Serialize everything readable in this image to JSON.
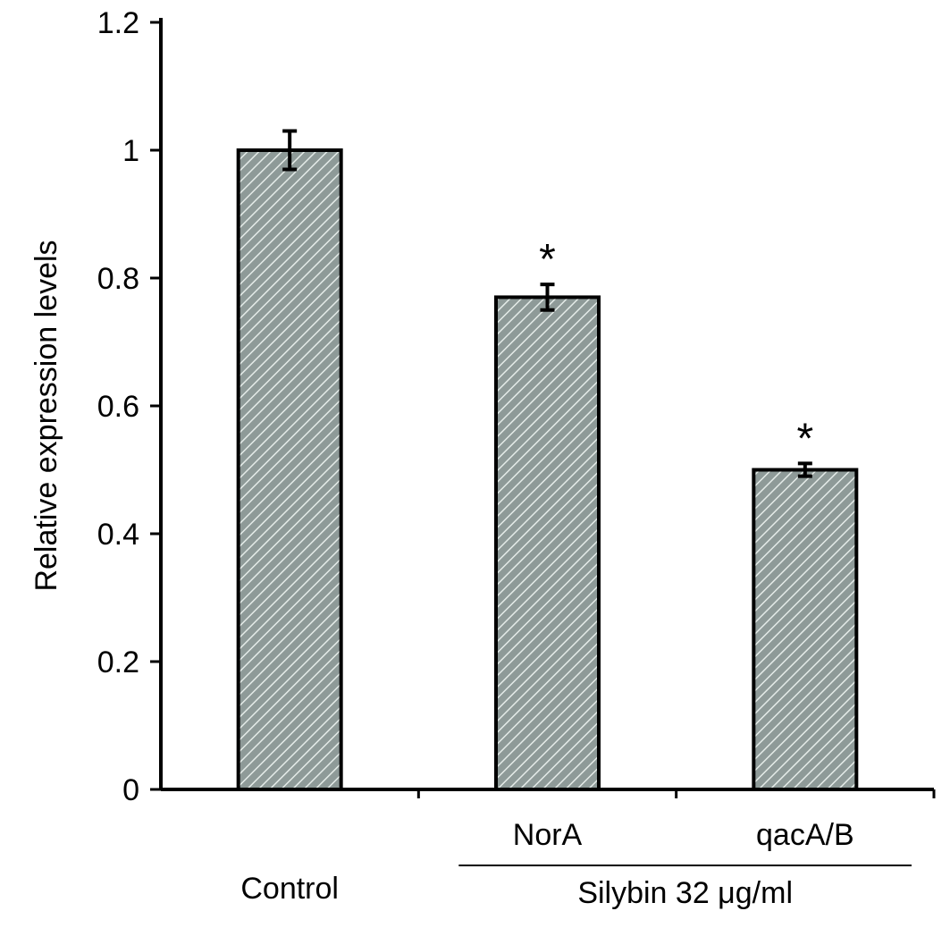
{
  "chart_data": {
    "type": "bar",
    "ylabel": "Relative expression levels",
    "ylim": [
      0,
      1.2
    ],
    "yticks": [
      "0",
      "0.2",
      "0.4",
      "0.6",
      "0.8",
      "1",
      "1.2"
    ],
    "categories": [
      "Control",
      "NorA",
      "qacA/B"
    ],
    "values": [
      1.0,
      0.77,
      0.5
    ],
    "errors": [
      0.03,
      0.02,
      0.01
    ],
    "significance": [
      "",
      "*",
      "*"
    ],
    "group_label": "Silybin 32 μg/ml",
    "grid": false,
    "bar_color": "#9aa8a4"
  }
}
